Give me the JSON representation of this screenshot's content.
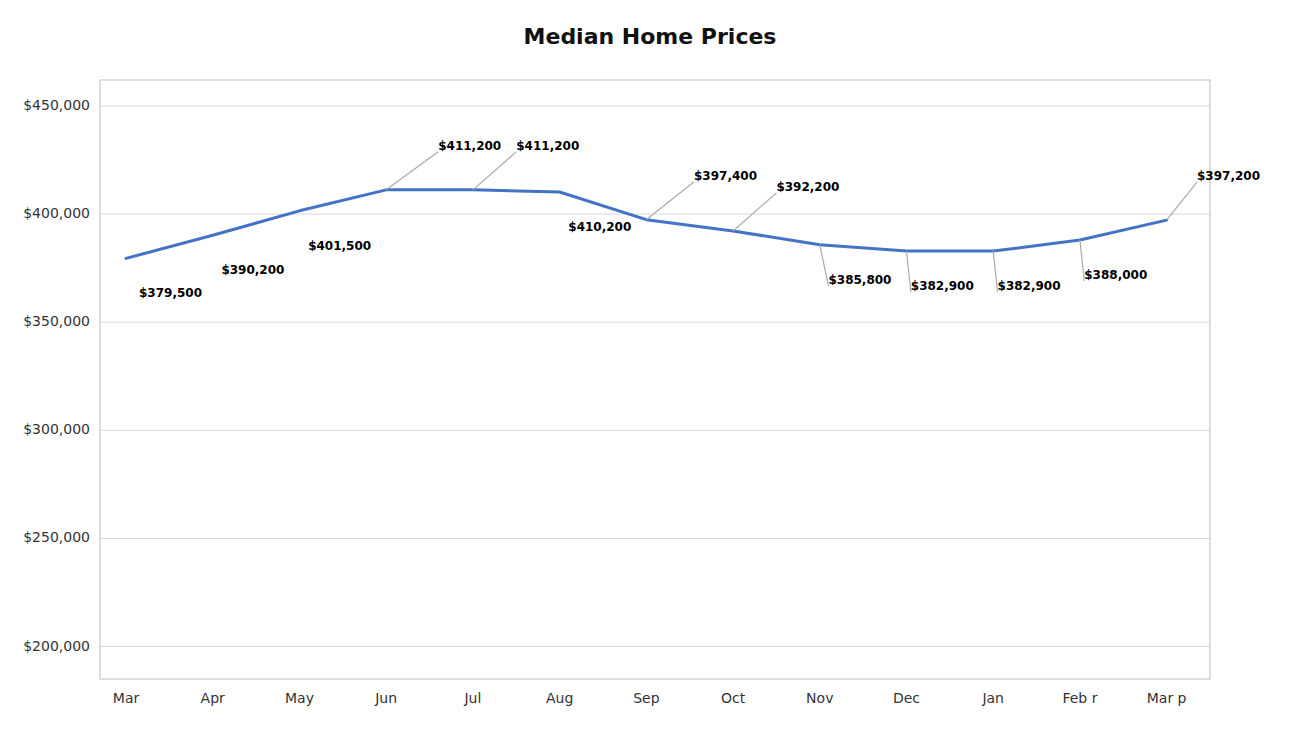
{
  "chart_data": {
    "type": "line",
    "title": "Median Home Prices",
    "categories": [
      "Mar",
      "Apr",
      "May",
      "Jun",
      "Jul",
      "Aug",
      "Sep",
      "Oct",
      "Nov",
      "Dec",
      "Jan",
      "Feb r",
      "Mar p"
    ],
    "values": [
      379500,
      390200,
      401500,
      411200,
      411200,
      410200,
      397400,
      392200,
      385800,
      382900,
      382900,
      388000,
      397200
    ],
    "value_labels": [
      "$379,500",
      "$390,200",
      "$401,500",
      "$411,200",
      "$411,200",
      "$410,200",
      "$397,400",
      "$392,200",
      "$385,800",
      "$382,900",
      "$382,900",
      "$388,000",
      "$397,200"
    ],
    "color": "#4472C4",
    "ylim": [
      185000,
      462000
    ],
    "yticks": [
      {
        "value": 200000,
        "label": "$200,000"
      },
      {
        "value": 250000,
        "label": "$250,000"
      },
      {
        "value": 300000,
        "label": "$300,000"
      },
      {
        "value": 350000,
        "label": "$350,000"
      },
      {
        "value": 400000,
        "label": "$400,000"
      },
      {
        "value": 450000,
        "label": "$450,000"
      }
    ],
    "grid": true,
    "data_labels": true
  }
}
